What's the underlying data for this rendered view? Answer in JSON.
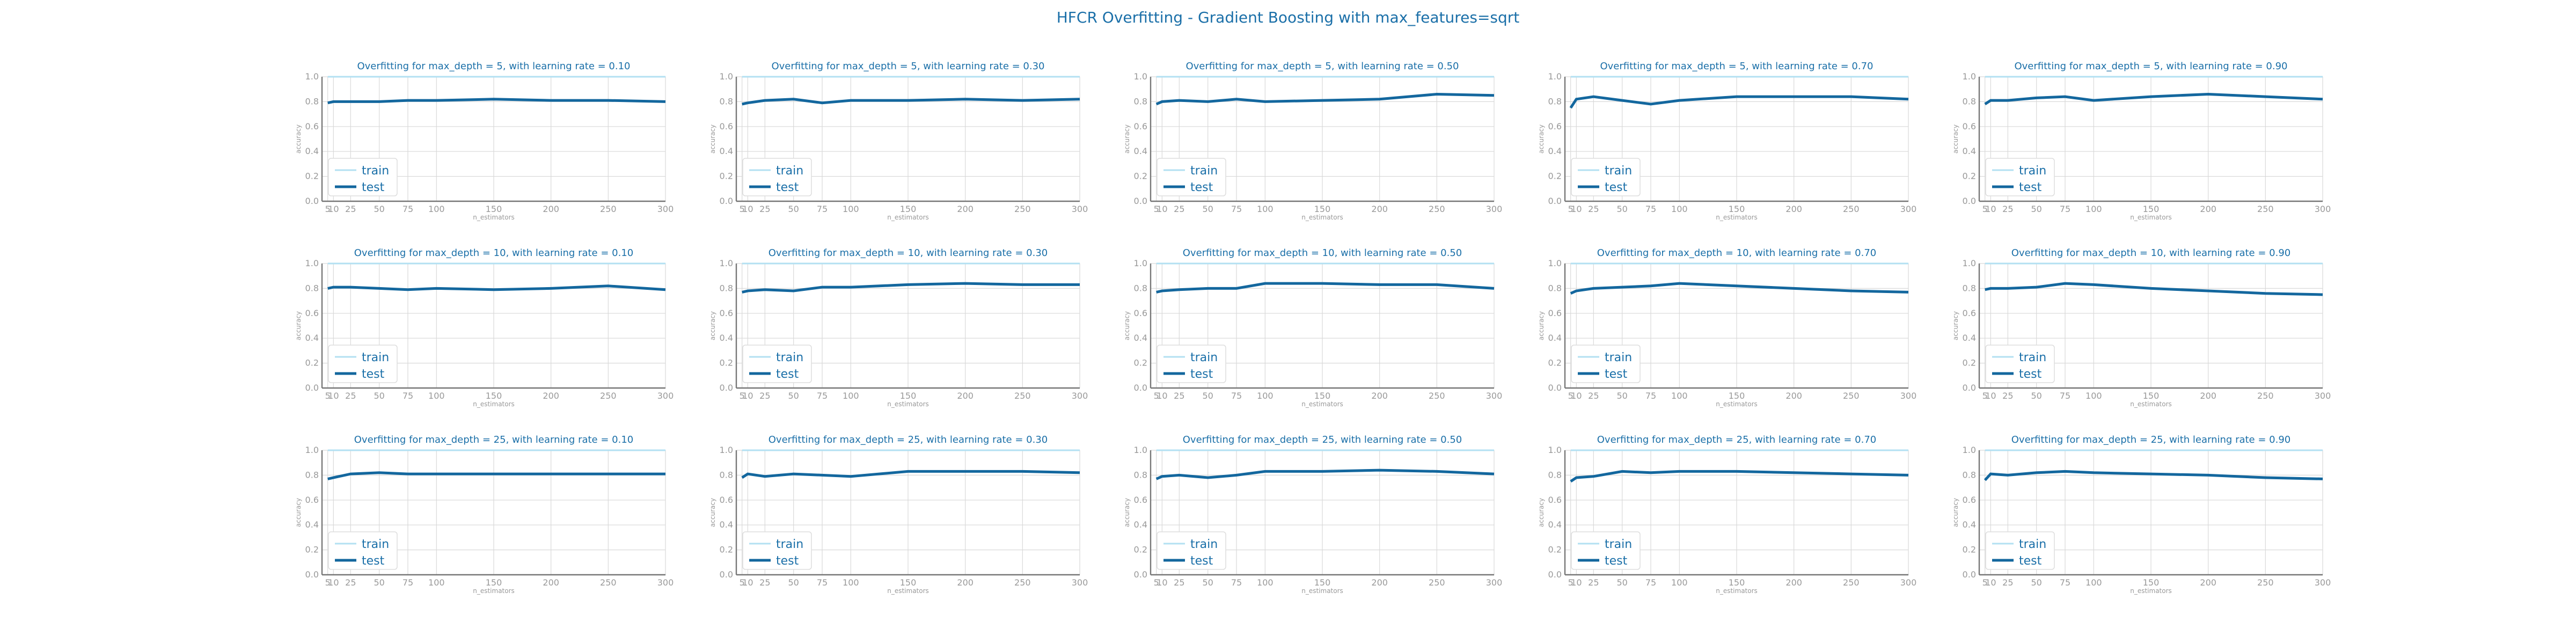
{
  "figure": {
    "suptitle": "HFCR Overfitting - Gradient Boosting with max_features=sqrt"
  },
  "colors": {
    "title": "#1a6fa8",
    "train": "#b3e0f2",
    "test": "#13679e",
    "grid": "#d9d9d9",
    "tick": "#999999"
  },
  "chart_data": {
    "type": "line",
    "xlabel": "n_estimators",
    "ylabel": "accuracy",
    "x": [
      5,
      10,
      25,
      50,
      75,
      100,
      150,
      200,
      250,
      300
    ],
    "xticks": [
      5,
      10,
      25,
      50,
      75,
      100,
      150,
      200,
      250,
      300
    ],
    "xlim": [
      0,
      300
    ],
    "ylim": [
      0,
      1
    ],
    "yticks": [
      0.0,
      0.2,
      0.4,
      0.6,
      0.8,
      1.0
    ],
    "grid": true,
    "legend": {
      "placement": "lower-left",
      "entries": [
        "train",
        "test"
      ]
    },
    "panels": [
      {
        "title": "Overfitting for max_depth = 5, with learning rate = 0.10",
        "max_depth": 5,
        "learning_rate": 0.1,
        "series": [
          {
            "name": "train",
            "values": [
              1,
              1,
              1,
              1,
              1,
              1,
              1,
              1,
              1,
              1
            ]
          },
          {
            "name": "test",
            "values": [
              0.79,
              0.8,
              0.8,
              0.8,
              0.81,
              0.81,
              0.82,
              0.81,
              0.81,
              0.8
            ]
          }
        ]
      },
      {
        "title": "Overfitting for max_depth = 5, with learning rate = 0.30",
        "max_depth": 5,
        "learning_rate": 0.3,
        "series": [
          {
            "name": "train",
            "values": [
              1,
              1,
              1,
              1,
              1,
              1,
              1,
              1,
              1,
              1
            ]
          },
          {
            "name": "test",
            "values": [
              0.78,
              0.79,
              0.81,
              0.82,
              0.79,
              0.81,
              0.81,
              0.82,
              0.81,
              0.82
            ]
          }
        ]
      },
      {
        "title": "Overfitting for max_depth = 5, with learning rate = 0.50",
        "max_depth": 5,
        "learning_rate": 0.5,
        "series": [
          {
            "name": "train",
            "values": [
              1,
              1,
              1,
              1,
              1,
              1,
              1,
              1,
              1,
              1
            ]
          },
          {
            "name": "test",
            "values": [
              0.78,
              0.8,
              0.81,
              0.8,
              0.82,
              0.8,
              0.81,
              0.82,
              0.86,
              0.85
            ]
          }
        ]
      },
      {
        "title": "Overfitting for max_depth = 5, with learning rate = 0.70",
        "max_depth": 5,
        "learning_rate": 0.7,
        "series": [
          {
            "name": "train",
            "values": [
              1,
              1,
              1,
              1,
              1,
              1,
              1,
              1,
              1,
              1
            ]
          },
          {
            "name": "test",
            "values": [
              0.75,
              0.82,
              0.84,
              0.81,
              0.78,
              0.81,
              0.84,
              0.84,
              0.84,
              0.82
            ]
          }
        ]
      },
      {
        "title": "Overfitting for max_depth = 5, with learning rate = 0.90",
        "max_depth": 5,
        "learning_rate": 0.9,
        "series": [
          {
            "name": "train",
            "values": [
              1,
              1,
              1,
              1,
              1,
              1,
              1,
              1,
              1,
              1
            ]
          },
          {
            "name": "test",
            "values": [
              0.78,
              0.81,
              0.81,
              0.83,
              0.84,
              0.81,
              0.84,
              0.86,
              0.84,
              0.82
            ]
          }
        ]
      },
      {
        "title": "Overfitting for max_depth = 10, with learning rate = 0.10",
        "max_depth": 10,
        "learning_rate": 0.1,
        "series": [
          {
            "name": "train",
            "values": [
              1,
              1,
              1,
              1,
              1,
              1,
              1,
              1,
              1,
              1
            ]
          },
          {
            "name": "test",
            "values": [
              0.8,
              0.81,
              0.81,
              0.8,
              0.79,
              0.8,
              0.79,
              0.8,
              0.82,
              0.79
            ]
          }
        ]
      },
      {
        "title": "Overfitting for max_depth = 10, with learning rate = 0.30",
        "max_depth": 10,
        "learning_rate": 0.3,
        "series": [
          {
            "name": "train",
            "values": [
              1,
              1,
              1,
              1,
              1,
              1,
              1,
              1,
              1,
              1
            ]
          },
          {
            "name": "test",
            "values": [
              0.77,
              0.78,
              0.79,
              0.78,
              0.81,
              0.81,
              0.83,
              0.84,
              0.83,
              0.83
            ]
          }
        ]
      },
      {
        "title": "Overfitting for max_depth = 10, with learning rate = 0.50",
        "max_depth": 10,
        "learning_rate": 0.5,
        "series": [
          {
            "name": "train",
            "values": [
              1,
              1,
              1,
              1,
              1,
              1,
              1,
              1,
              1,
              1
            ]
          },
          {
            "name": "test",
            "values": [
              0.77,
              0.78,
              0.79,
              0.8,
              0.8,
              0.84,
              0.84,
              0.83,
              0.83,
              0.8
            ]
          }
        ]
      },
      {
        "title": "Overfitting for max_depth = 10, with learning rate = 0.70",
        "max_depth": 10,
        "learning_rate": 0.7,
        "series": [
          {
            "name": "train",
            "values": [
              1,
              1,
              1,
              1,
              1,
              1,
              1,
              1,
              1,
              1
            ]
          },
          {
            "name": "test",
            "values": [
              0.76,
              0.78,
              0.8,
              0.81,
              0.82,
              0.84,
              0.82,
              0.8,
              0.78,
              0.77
            ]
          }
        ]
      },
      {
        "title": "Overfitting for max_depth = 10, with learning rate = 0.90",
        "max_depth": 10,
        "learning_rate": 0.9,
        "series": [
          {
            "name": "train",
            "values": [
              1,
              1,
              1,
              1,
              1,
              1,
              1,
              1,
              1,
              1
            ]
          },
          {
            "name": "test",
            "values": [
              0.79,
              0.8,
              0.8,
              0.81,
              0.84,
              0.83,
              0.8,
              0.78,
              0.76,
              0.75
            ]
          }
        ]
      },
      {
        "title": "Overfitting for max_depth = 25, with learning rate = 0.10",
        "max_depth": 25,
        "learning_rate": 0.1,
        "series": [
          {
            "name": "train",
            "values": [
              1,
              1,
              1,
              1,
              1,
              1,
              1,
              1,
              1,
              1
            ]
          },
          {
            "name": "test",
            "values": [
              0.77,
              0.78,
              0.81,
              0.82,
              0.81,
              0.81,
              0.81,
              0.81,
              0.81,
              0.81
            ]
          }
        ]
      },
      {
        "title": "Overfitting for max_depth = 25, with learning rate = 0.30",
        "max_depth": 25,
        "learning_rate": 0.3,
        "series": [
          {
            "name": "train",
            "values": [
              1,
              1,
              1,
              1,
              1,
              1,
              1,
              1,
              1,
              1
            ]
          },
          {
            "name": "test",
            "values": [
              0.78,
              0.81,
              0.79,
              0.81,
              0.8,
              0.79,
              0.83,
              0.83,
              0.83,
              0.82
            ]
          }
        ]
      },
      {
        "title": "Overfitting for max_depth = 25, with learning rate = 0.50",
        "max_depth": 25,
        "learning_rate": 0.5,
        "series": [
          {
            "name": "train",
            "values": [
              1,
              1,
              1,
              1,
              1,
              1,
              1,
              1,
              1,
              1
            ]
          },
          {
            "name": "test",
            "values": [
              0.77,
              0.79,
              0.8,
              0.78,
              0.8,
              0.83,
              0.83,
              0.84,
              0.83,
              0.81
            ]
          }
        ]
      },
      {
        "title": "Overfitting for max_depth = 25, with learning rate = 0.70",
        "max_depth": 25,
        "learning_rate": 0.7,
        "series": [
          {
            "name": "train",
            "values": [
              1,
              1,
              1,
              1,
              1,
              1,
              1,
              1,
              1,
              1
            ]
          },
          {
            "name": "test",
            "values": [
              0.75,
              0.78,
              0.79,
              0.83,
              0.82,
              0.83,
              0.83,
              0.82,
              0.81,
              0.8
            ]
          }
        ]
      },
      {
        "title": "Overfitting for max_depth = 25, with learning rate = 0.90",
        "max_depth": 25,
        "learning_rate": 0.9,
        "series": [
          {
            "name": "train",
            "values": [
              1,
              1,
              1,
              1,
              1,
              1,
              1,
              1,
              1,
              1
            ]
          },
          {
            "name": "test",
            "values": [
              0.76,
              0.81,
              0.8,
              0.82,
              0.83,
              0.82,
              0.81,
              0.8,
              0.78,
              0.77
            ]
          }
        ]
      }
    ]
  }
}
